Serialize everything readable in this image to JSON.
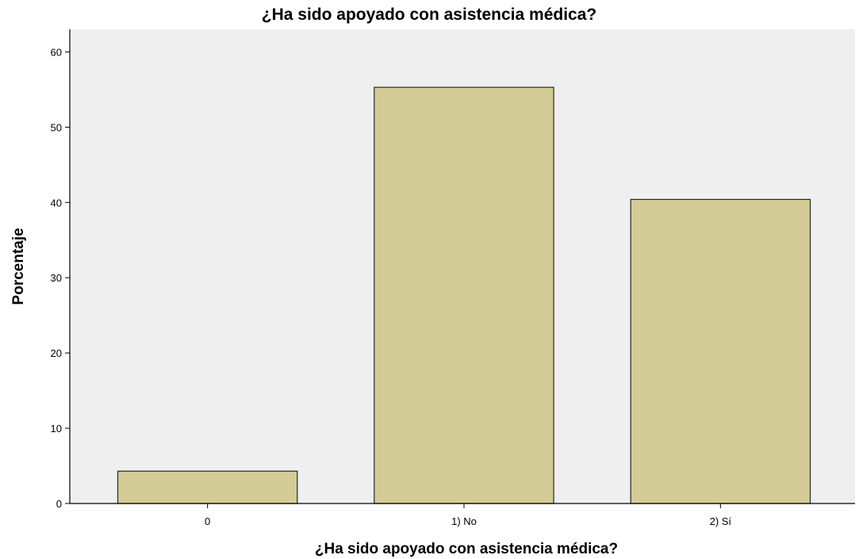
{
  "chart_data": {
    "type": "bar",
    "title": "¿Ha sido apoyado con asistencia médica?",
    "xlabel": "¿Ha sido apoyado con asistencia médica?",
    "ylabel": "Porcentaje",
    "categories": [
      "0",
      "1) No",
      "2) Sí"
    ],
    "values": [
      4.3,
      55.3,
      40.4
    ],
    "ylim": [
      0,
      63
    ],
    "yticks": [
      0,
      10,
      20,
      30,
      40,
      50,
      60
    ],
    "grid": false,
    "legend": "none",
    "colors": {
      "bar_fill": "#d4cc96",
      "bar_stroke": "#262626",
      "plot_background": "#efefef",
      "axis": "#000000"
    }
  }
}
